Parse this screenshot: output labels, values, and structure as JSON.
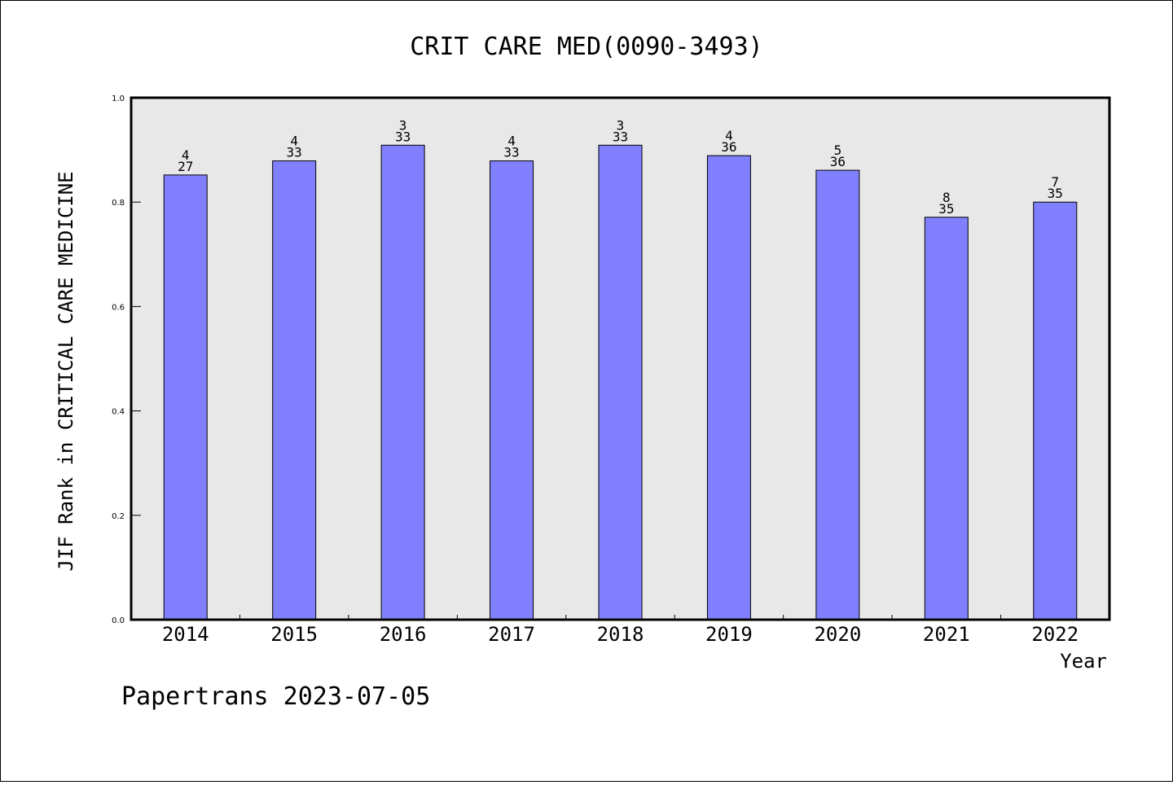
{
  "chart_data": {
    "type": "bar",
    "title": "CRIT CARE MED(0090-3493)",
    "xlabel": "Year",
    "ylabel": "JIF Rank in CRITICAL CARE MEDICINE",
    "categories": [
      "2014",
      "2015",
      "2016",
      "2017",
      "2018",
      "2019",
      "2020",
      "2021",
      "2022"
    ],
    "values": [
      0.852,
      0.879,
      0.909,
      0.879,
      0.909,
      0.889,
      0.861,
      0.771,
      0.8
    ],
    "rank": [
      "4",
      "4",
      "3",
      "4",
      "3",
      "4",
      "5",
      "8",
      "7"
    ],
    "total": [
      "27",
      "33",
      "33",
      "33",
      "33",
      "36",
      "36",
      "35",
      "35"
    ],
    "ylim": [
      0,
      1.0
    ],
    "yticks": [
      "0.0",
      "0.2",
      "0.4",
      "0.6",
      "0.8",
      "1.0"
    ],
    "bar_color": "#8080ff",
    "plot_background": "#e8e8e8",
    "grid": false,
    "legend": "none"
  },
  "footer": {
    "text": "Papertrans 2023-07-05"
  }
}
